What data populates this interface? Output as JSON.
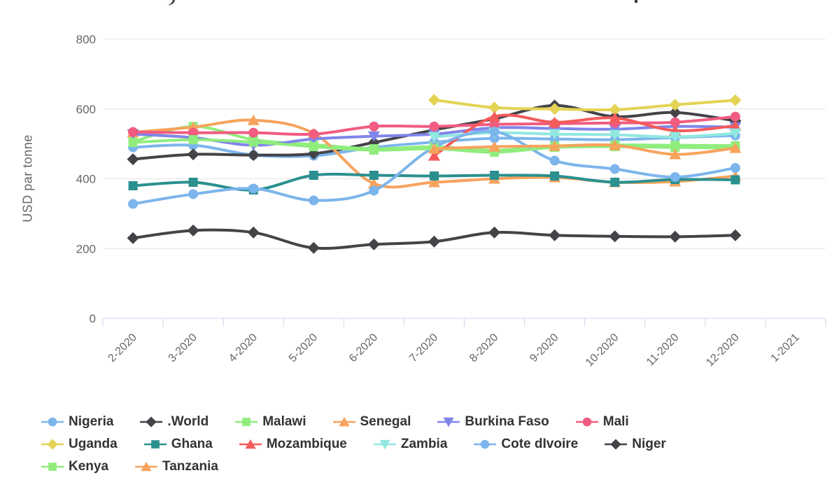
{
  "y_axis": {
    "title": "USD par tonne",
    "tick_labels": [
      "0",
      "200",
      "400",
      "600",
      "800"
    ]
  },
  "chart_data": {
    "type": "line",
    "title": "",
    "xlabel": "",
    "ylabel": "USD par tonne",
    "ylim": [
      0,
      800
    ],
    "yticks": [
      0,
      200,
      400,
      600,
      800
    ],
    "grid": true,
    "legend_position": "bottom",
    "line_style": "spline",
    "categories": [
      "2-2020",
      "3-2020",
      "4-2020",
      "5-2020",
      "6-2020",
      "7-2020",
      "8-2020",
      "9-2020",
      "10-2020",
      "11-2020",
      "12-2020",
      "1-2021"
    ],
    "series": [
      {
        "name": "Nigeria",
        "color": "#7cb5ec",
        "marker": "circle",
        "values": [
          490,
          496,
          468,
          466,
          490,
          505,
          516,
          514,
          512,
          518,
          524,
          null
        ]
      },
      {
        "name": ".World",
        "color": "#434348",
        "marker": "diamond",
        "values": [
          456,
          470,
          468,
          472,
          504,
          540,
          572,
          610,
          578,
          590,
          566,
          null
        ]
      },
      {
        "name": "Malawi",
        "color": "#90ed7d",
        "marker": "square",
        "values": [
          506,
          550,
          512,
          498,
          486,
          492,
          482,
          494,
          497,
          496,
          495,
          null
        ]
      },
      {
        "name": "Senegal",
        "color": "#f7a35c",
        "marker": "triangle",
        "values": [
          533,
          548,
          568,
          530,
          386,
          390,
          400,
          404,
          390,
          392,
          408,
          null
        ]
      },
      {
        "name": "Burkina Faso",
        "color": "#8085e9",
        "marker": "triangle-down",
        "values": [
          528,
          518,
          496,
          514,
          522,
          528,
          546,
          544,
          542,
          550,
          548,
          null
        ]
      },
      {
        "name": "Mali",
        "color": "#f15c80",
        "marker": "circle",
        "values": [
          534,
          532,
          532,
          528,
          550,
          550,
          556,
          558,
          560,
          562,
          578,
          null
        ]
      },
      {
        "name": "Uganda",
        "color": "#e4d354",
        "marker": "diamond",
        "values": [
          null,
          null,
          null,
          null,
          null,
          626,
          604,
          600,
          598,
          612,
          625,
          null
        ]
      },
      {
        "name": "Ghana",
        "color": "#2b908f",
        "marker": "square",
        "values": [
          380,
          390,
          368,
          410,
          410,
          408,
          410,
          408,
          390,
          398,
          397,
          null
        ]
      },
      {
        "name": "Mozambique",
        "color": "#f45b5b",
        "marker": "triangle",
        "values": [
          null,
          null,
          null,
          null,
          null,
          466,
          578,
          562,
          574,
          538,
          552,
          null
        ]
      },
      {
        "name": "Zambia",
        "color": "#91e8e1",
        "marker": "triangle-down",
        "values": [
          null,
          null,
          null,
          null,
          null,
          520,
          532,
          528,
          526,
          520,
          530,
          null
        ]
      },
      {
        "name": "Cote dIvoire",
        "color": "#7cb5ec",
        "marker": "circle",
        "values": [
          328,
          356,
          372,
          338,
          366,
          490,
          535,
          452,
          428,
          405,
          431,
          null
        ]
      },
      {
        "name": "Niger",
        "color": "#434348",
        "marker": "diamond",
        "values": [
          230,
          252,
          246,
          202,
          212,
          220,
          246,
          238,
          235,
          234,
          238,
          null
        ]
      },
      {
        "name": "Kenya",
        "color": "#90ed7d",
        "marker": "square",
        "values": [
          504,
          512,
          505,
          492,
          482,
          486,
          476,
          490,
          492,
          490,
          488,
          null
        ]
      },
      {
        "name": "Tanzania",
        "color": "#f7a35c",
        "marker": "triangle",
        "values": [
          null,
          null,
          null,
          null,
          null,
          486,
          492,
          494,
          496,
          470,
          488,
          null
        ]
      }
    ],
    "axis_colors": {
      "grid": "#e6e6e6",
      "axis_line": "#ccd6eb",
      "tick_text": "#666666",
      "legend_text": "#333333"
    }
  }
}
